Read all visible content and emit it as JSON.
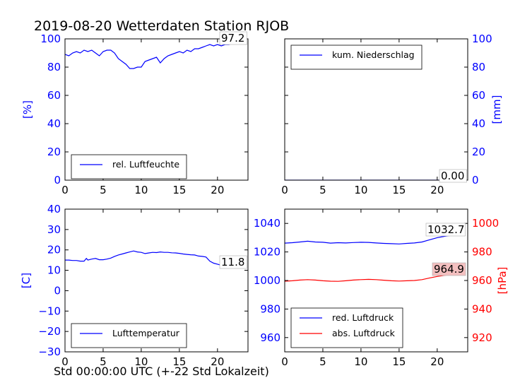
{
  "figure": {
    "title": "2019-08-20 Wetterdaten Station RJOB",
    "xlabel": "Std 00:00:00 UTC (+-22 Std Lokalzeit)"
  },
  "colors": {
    "blue": "#0000ff",
    "red": "#ff0000",
    "black": "#000000"
  },
  "chart_data": [
    {
      "id": "humidity",
      "type": "line",
      "ylabel": "[%]",
      "xlim": [
        0,
        24
      ],
      "ylim": [
        0,
        100
      ],
      "xticks": [
        0,
        5,
        10,
        15,
        20
      ],
      "yticks": [
        0,
        20,
        40,
        60,
        80,
        100
      ],
      "legend_position": "lower-left",
      "series": [
        {
          "name": "rel. Luftfeuchte",
          "color": "#0000ff",
          "x": [
            0,
            0.5,
            1,
            1.5,
            2,
            2.5,
            3,
            3.5,
            4,
            4.5,
            5,
            5.5,
            6,
            6.5,
            7,
            7.5,
            8,
            8.5,
            9,
            9.5,
            10,
            10.5,
            11,
            11.5,
            12,
            12.5,
            13,
            13.5,
            14,
            14.5,
            15,
            15.5,
            16,
            16.5,
            17,
            17.5,
            18,
            18.5,
            19,
            19.5,
            20,
            20.5,
            21,
            21.5,
            22,
            22.5,
            23,
            23.5
          ],
          "y": [
            89,
            88,
            90,
            91,
            90,
            92,
            91,
            92,
            90,
            88,
            91,
            92,
            92,
            90,
            86,
            84,
            82,
            79,
            79,
            80,
            80,
            84,
            85,
            86,
            87,
            83,
            86,
            88,
            89,
            90,
            91,
            90,
            92,
            91,
            93,
            93,
            94,
            95,
            96,
            95,
            96,
            95,
            96,
            96,
            97,
            97,
            97,
            97.2
          ]
        }
      ],
      "annotation": "97.2"
    },
    {
      "id": "precipitation",
      "type": "line",
      "ylabel": "[mm]",
      "xlim": [
        0,
        24
      ],
      "ylim": [
        0,
        100
      ],
      "xticks": [
        0,
        5,
        10,
        15,
        20
      ],
      "yticks": [
        0,
        20,
        40,
        60,
        80,
        100
      ],
      "legend_position": "upper-left",
      "series": [
        {
          "name": "kum. Niederschlag",
          "color": "#0000ff",
          "x": [
            0,
            23.5
          ],
          "y": [
            0,
            0
          ]
        }
      ],
      "annotation": "0.00"
    },
    {
      "id": "temperature",
      "type": "line",
      "ylabel": "[C]",
      "xlim": [
        0,
        24
      ],
      "ylim": [
        -30,
        40
      ],
      "xticks": [
        0,
        5,
        10,
        15,
        20
      ],
      "yticks": [
        -30,
        -20,
        -10,
        0,
        10,
        20,
        30,
        40
      ],
      "legend_position": "lower-left",
      "series": [
        {
          "name": "Lufttemperatur",
          "color": "#0000ff",
          "x": [
            0,
            0.5,
            1,
            1.5,
            2,
            2.5,
            2.8,
            3,
            3.5,
            4,
            4.5,
            5,
            5.5,
            6,
            6.5,
            7,
            7.5,
            8,
            8.5,
            9,
            9.5,
            10,
            10.5,
            11,
            11.5,
            12,
            12.5,
            13,
            13.5,
            14,
            14.5,
            15,
            15.5,
            16,
            16.5,
            17,
            17.5,
            18,
            18.5,
            19,
            19.5,
            20,
            20.5,
            21,
            21.5,
            22,
            22.5,
            23,
            23.5
          ],
          "y": [
            15,
            15,
            14.8,
            14.8,
            14.5,
            14.5,
            15.8,
            15,
            15.5,
            15.8,
            15.2,
            15.2,
            15.5,
            16,
            16.8,
            17.5,
            18,
            18.5,
            19,
            19.5,
            19,
            18.8,
            18.2,
            18.5,
            18.8,
            18.7,
            19,
            18.8,
            18.8,
            18.6,
            18.5,
            18.3,
            18,
            17.8,
            17.6,
            17.5,
            17,
            16.8,
            16.5,
            14.5,
            13.5,
            13,
            12.5,
            12,
            12.2,
            12,
            11.9,
            11.8,
            11.8
          ]
        }
      ],
      "annotation": "11.8"
    },
    {
      "id": "pressure",
      "type": "line",
      "ylabel_right": "[hPa]",
      "xlim": [
        0,
        24
      ],
      "ylim": [
        950,
        1050
      ],
      "ylim_right": [
        910,
        1010
      ],
      "xticks": [
        0,
        5,
        10,
        15,
        20
      ],
      "yticks": [
        960,
        980,
        1000,
        1020,
        1040
      ],
      "yticks_right": [
        920,
        940,
        960,
        980,
        1000
      ],
      "legend_position": "lower-left",
      "series": [
        {
          "name": "red. Luftdruck",
          "color": "#0000ff",
          "axis": "left",
          "x": [
            0,
            1,
            2,
            3,
            4,
            5,
            6,
            7,
            8,
            9,
            10,
            11,
            12,
            13,
            14,
            15,
            16,
            17,
            18,
            19,
            20,
            21,
            22,
            23,
            23.5
          ],
          "y": [
            1026.2,
            1026.5,
            1027,
            1027.5,
            1027,
            1026.8,
            1026.2,
            1026.5,
            1026.3,
            1026.6,
            1026.8,
            1026.7,
            1026.3,
            1026,
            1025.8,
            1025.6,
            1026,
            1026.3,
            1027,
            1028.5,
            1030,
            1031,
            1031.8,
            1032.5,
            1032.7
          ]
        },
        {
          "name": "abs. Luftdruck",
          "color": "#ff0000",
          "axis": "right",
          "x": [
            0,
            1,
            2,
            3,
            4,
            5,
            6,
            7,
            8,
            9,
            10,
            11,
            12,
            13,
            14,
            15,
            16,
            17,
            18,
            19,
            20,
            21,
            22,
            23,
            23.5
          ],
          "y": [
            959.5,
            959.8,
            960.3,
            960.6,
            960.3,
            959.8,
            959.5,
            959.4,
            959.8,
            960.3,
            960.6,
            960.8,
            960.6,
            960.2,
            959.8,
            959.6,
            959.8,
            960,
            960.6,
            961.8,
            962.8,
            963.6,
            964.2,
            964.7,
            964.9
          ]
        }
      ],
      "annotations": [
        "1032.7",
        "964.9"
      ]
    }
  ]
}
